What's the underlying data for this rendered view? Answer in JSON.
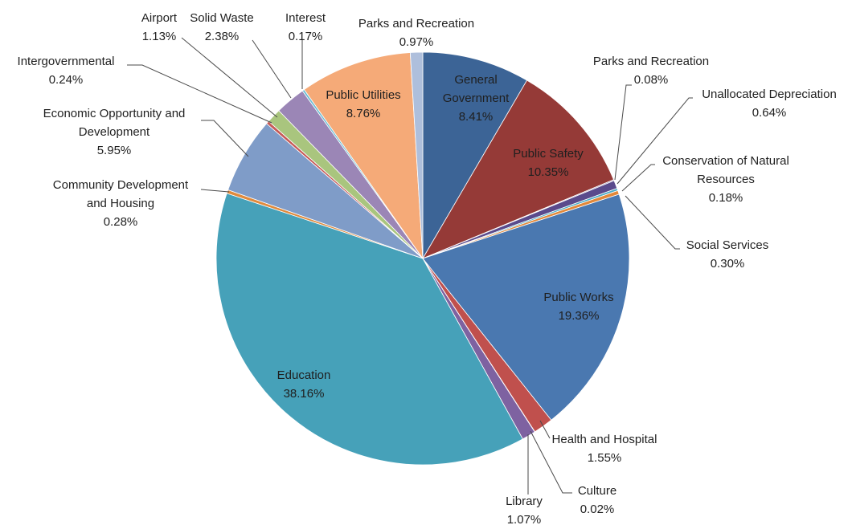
{
  "chart_data": {
    "type": "pie",
    "title": "",
    "legend": "none",
    "start_angle_deg": 0,
    "direction": "clockwise",
    "slices": [
      {
        "label": "General Government",
        "value": 8.41,
        "value_label": "8.41%",
        "color": "#3c6496",
        "label_placement": "inside"
      },
      {
        "label": "Public Safety",
        "value": 10.35,
        "value_label": "10.35%",
        "color": "#953a37",
        "label_placement": "inside"
      },
      {
        "label": "Parks and Recreation",
        "value": 0.08,
        "value_label": "0.08%",
        "color": "#7b63a0",
        "label_placement": "outside"
      },
      {
        "label": "Unallocated Depreciation",
        "value": 0.64,
        "value_label": "0.64%",
        "color": "#5a4a8c",
        "label_placement": "outside"
      },
      {
        "label": "Conservation of Natural Resources",
        "value": 0.18,
        "value_label": "0.18%",
        "color": "#4bacc6",
        "label_placement": "outside"
      },
      {
        "label": "Social Services",
        "value": 0.3,
        "value_label": "0.30%",
        "color": "#e2883a",
        "label_placement": "outside"
      },
      {
        "label": "Public Works",
        "value": 19.36,
        "value_label": "19.36%",
        "color": "#4a78b0",
        "label_placement": "inside"
      },
      {
        "label": "Health and Hospital",
        "value": 1.55,
        "value_label": "1.55%",
        "color": "#c0504d",
        "label_placement": "outside"
      },
      {
        "label": "Culture",
        "value": 0.02,
        "value_label": "0.02%",
        "color": "#9bbb59",
        "label_placement": "outside"
      },
      {
        "label": "Library",
        "value": 1.07,
        "value_label": "1.07%",
        "color": "#7e62a1",
        "label_placement": "outside"
      },
      {
        "label": "Education",
        "value": 38.16,
        "value_label": "38.16%",
        "color": "#46a1b9",
        "label_placement": "inside"
      },
      {
        "label": "Community Development and Housing",
        "value": 0.28,
        "value_label": "0.28%",
        "color": "#e08a3c",
        "label_placement": "outside"
      },
      {
        "label": "Economic Opportunity and Development",
        "value": 5.95,
        "value_label": "5.95%",
        "color": "#7f9cc8",
        "label_placement": "outside"
      },
      {
        "label": "Intergovernmental",
        "value": 0.24,
        "value_label": "0.24%",
        "color": "#c65a57",
        "label_placement": "outside"
      },
      {
        "label": "Airport",
        "value": 1.13,
        "value_label": "1.13%",
        "color": "#a9c57e",
        "label_placement": "outside"
      },
      {
        "label": "Solid Waste",
        "value": 2.38,
        "value_label": "2.38%",
        "color": "#9b86b6",
        "label_placement": "outside"
      },
      {
        "label": "Interest",
        "value": 0.17,
        "value_label": "0.17%",
        "color": "#6cbdd3",
        "label_placement": "outside"
      },
      {
        "label": "Public Utilities",
        "value": 8.76,
        "value_label": "8.76%",
        "color": "#f5aa78",
        "label_placement": "inside"
      },
      {
        "label": "Parks and Recreation",
        "value": 0.97,
        "value_label": "0.97%",
        "color": "#aebfdc",
        "label_placement": "outside"
      }
    ]
  }
}
